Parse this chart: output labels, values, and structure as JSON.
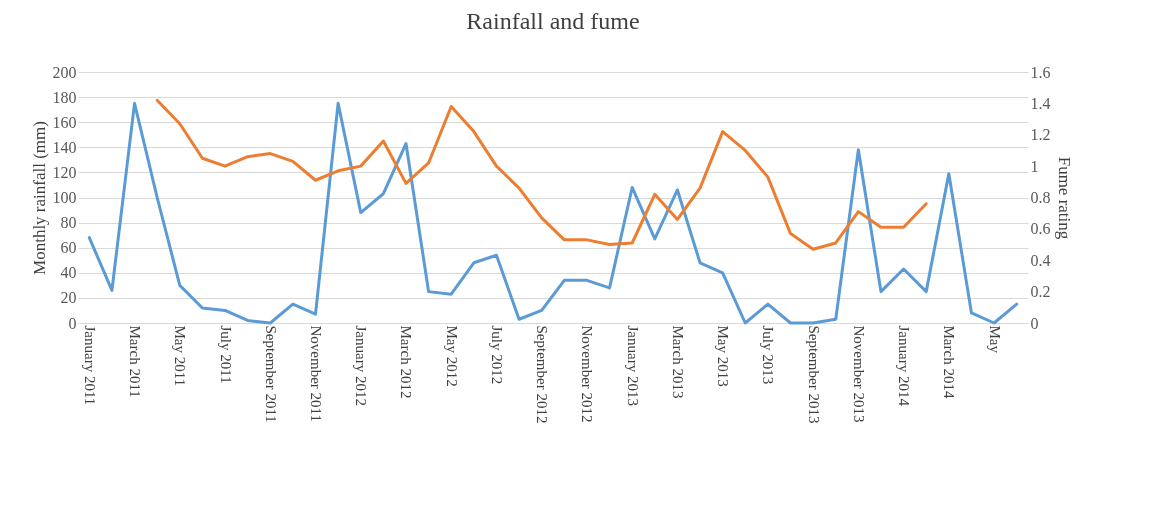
{
  "chart_data": {
    "type": "line",
    "title": "Rainfall and fume",
    "ylabel": "Monthly rainfall (mm)",
    "y2label": "Fume rating",
    "categories": [
      "January 2011",
      null,
      "March 2011",
      null,
      "May 2011",
      null,
      "July 2011",
      null,
      "September 2011",
      null,
      "November 2011",
      null,
      "January 2012",
      null,
      "March 2012",
      null,
      "May 2012",
      null,
      "July 2012",
      null,
      "September 2012",
      null,
      "November 2012",
      null,
      "January 2013",
      null,
      "March 2013",
      null,
      "May 2013",
      null,
      "July 2013",
      null,
      "September 2013",
      null,
      "November 2013",
      null,
      "January 2014",
      null,
      "March 2014",
      null,
      "May",
      null
    ],
    "series": [
      {
        "color": "#5b9bd5",
        "values": [
          68,
          26,
          175,
          100,
          30,
          12,
          10,
          2,
          0,
          15,
          7,
          175,
          88,
          103,
          143,
          25,
          23,
          48,
          54,
          3,
          10,
          34,
          34,
          28,
          108,
          67,
          106,
          48,
          40,
          0,
          15,
          0,
          0,
          3,
          138,
          25,
          43,
          25,
          119,
          8,
          0,
          15
        ]
      },
      {
        "color": "#ed7d31",
        "axis": "y2",
        "values": [
          null,
          null,
          null,
          1.42,
          1.27,
          1.05,
          1.0,
          1.06,
          1.08,
          1.03,
          0.91,
          0.97,
          1.0,
          1.16,
          0.89,
          1.02,
          1.38,
          1.22,
          1.0,
          0.86,
          0.67,
          0.53,
          0.53,
          0.5,
          0.51,
          0.82,
          0.66,
          0.86,
          1.22,
          1.1,
          0.93,
          0.57,
          0.47,
          0.51,
          0.71,
          0.61,
          0.61,
          0.76,
          null,
          null,
          null,
          null
        ]
      }
    ],
    "ylim": [
      0,
      200
    ],
    "yticks": [
      0,
      20,
      40,
      60,
      80,
      100,
      120,
      140,
      160,
      180,
      200
    ],
    "y2lim": [
      0,
      1.6
    ],
    "y2ticks": [
      0,
      0.2,
      0.4,
      0.6,
      0.8,
      1,
      1.2,
      1.4,
      1.6
    ],
    "grid": "y",
    "line_style": "solid",
    "marker": "none"
  }
}
